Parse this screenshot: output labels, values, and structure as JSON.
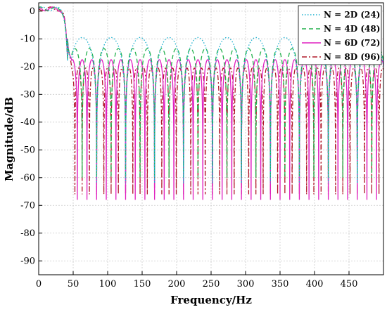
{
  "chart_data": {
    "type": "line",
    "xlabel": "Frequency/Hz",
    "ylabel": "Magnitude/dB",
    "xlim": [
      0,
      500
    ],
    "ylim": [
      -95,
      3
    ],
    "x_ticks": [
      0,
      50,
      100,
      150,
      200,
      250,
      300,
      350,
      400,
      450
    ],
    "y_ticks": [
      0,
      -10,
      -20,
      -30,
      -40,
      -50,
      -60,
      -70,
      -80,
      -90
    ],
    "grid": true,
    "legend_position": "top-right",
    "passband_edge_hz": 42,
    "series": [
      {
        "name": "N = 2D (24)",
        "color": "#1ab0cf",
        "style": "dotted",
        "lobe_peak_db": -9.5,
        "lobe_width_hz": 42.0,
        "notch_depth_db": -62
      },
      {
        "name": "N = 4D (48)",
        "color": "#22b14c",
        "style": "dashed",
        "lobe_peak_db": -13.5,
        "lobe_width_hz": 21.0,
        "notch_depth_db": -60
      },
      {
        "name": "N = 6D (72)",
        "color": "#e020c0",
        "style": "solid",
        "lobe_peak_db": -17.5,
        "lobe_width_hz": 14.0,
        "notch_depth_db": -68
      },
      {
        "name": "N = 8D (96)",
        "color": "#b0182a",
        "style": "dashdot",
        "lobe_peak_db": -20.5,
        "lobe_width_hz": 10.5,
        "notch_depth_db": -66
      }
    ]
  }
}
